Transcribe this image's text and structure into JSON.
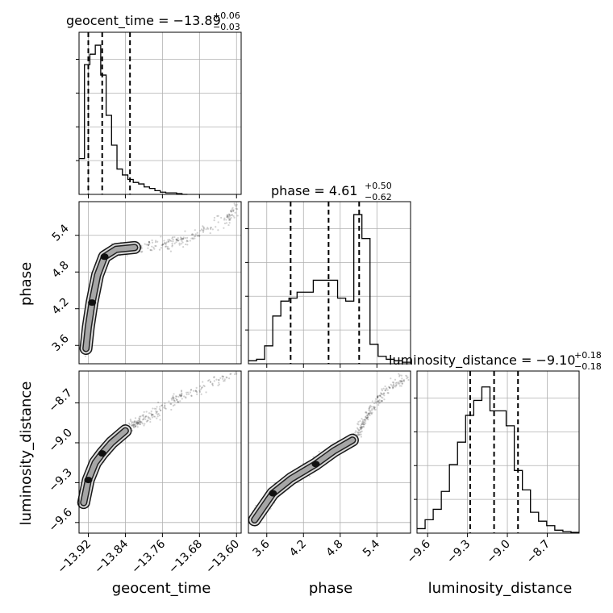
{
  "chart_data": {
    "type": "corner",
    "parameters": [
      "geocent_time",
      "phase",
      "luminosity_distance"
    ],
    "titles": [
      {
        "param": "geocent_time",
        "label": "geocent_time = −13.89",
        "plus": "+0.06",
        "minus": "−0.03"
      },
      {
        "param": "phase",
        "label": "phase = 4.61",
        "plus": "+0.50",
        "minus": "−0.62"
      },
      {
        "param": "luminosity_distance",
        "label": "luminosity_distance = −9.10",
        "plus": "+0.18",
        "minus": "−0.18"
      }
    ],
    "axis_labels": {
      "x": [
        "geocent_time",
        "phase",
        "luminosity_distance"
      ],
      "y": [
        "phase",
        "luminosity_distance"
      ]
    },
    "ranges": {
      "geocent_time": [
        -13.94,
        -13.59
      ],
      "phase": [
        3.3,
        5.95
      ],
      "luminosity_distance": [
        -9.68,
        -8.46
      ]
    },
    "ticks": {
      "geocent_time": [
        "−13.92",
        "−13.84",
        "−13.76",
        "−13.68",
        "−13.60"
      ],
      "geocent_time_values": [
        -13.92,
        -13.84,
        -13.76,
        -13.68,
        -13.6
      ],
      "phase": [
        "3.6",
        "4.2",
        "4.8",
        "5.4"
      ],
      "phase_values": [
        3.6,
        4.2,
        4.8,
        5.4
      ],
      "luminosity_distance": [
        "−9.6",
        "−9.3",
        "−9.0",
        "−8.7"
      ],
      "luminosity_distance_values": [
        -9.6,
        -9.3,
        -9.0,
        -8.7
      ]
    },
    "quantile_lines": {
      "geocent_time": [
        -13.92,
        -13.89,
        -13.83
      ],
      "phase": [
        3.99,
        4.61,
        5.11
      ],
      "luminosity_distance": [
        -9.28,
        -9.1,
        -8.92
      ]
    },
    "histograms": {
      "geocent_time": {
        "bin_start": -13.94,
        "bin_width": 0.0117,
        "counts": [
          0.24,
          0.87,
          0.94,
          1.0,
          0.8,
          0.53,
          0.33,
          0.17,
          0.13,
          0.1,
          0.08,
          0.07,
          0.05,
          0.04,
          0.025,
          0.015,
          0.01,
          0.01,
          0.005,
          0.0
        ]
      },
      "phase": {
        "bin_start": 3.3,
        "bin_width": 0.1325,
        "counts": [
          0.02,
          0.03,
          0.12,
          0.32,
          0.42,
          0.44,
          0.48,
          0.48,
          0.56,
          0.56,
          0.56,
          0.44,
          0.42,
          1.0,
          0.84,
          0.13,
          0.05,
          0.03,
          0.02,
          0.01
        ]
      },
      "luminosity_distance": {
        "bin_start": -9.68,
        "bin_width": 0.061,
        "counts": [
          0.03,
          0.09,
          0.16,
          0.28,
          0.46,
          0.61,
          0.79,
          0.89,
          0.98,
          0.82,
          0.82,
          0.72,
          0.42,
          0.29,
          0.14,
          0.08,
          0.05,
          0.02,
          0.01,
          0.005
        ]
      }
    },
    "grid": true
  }
}
